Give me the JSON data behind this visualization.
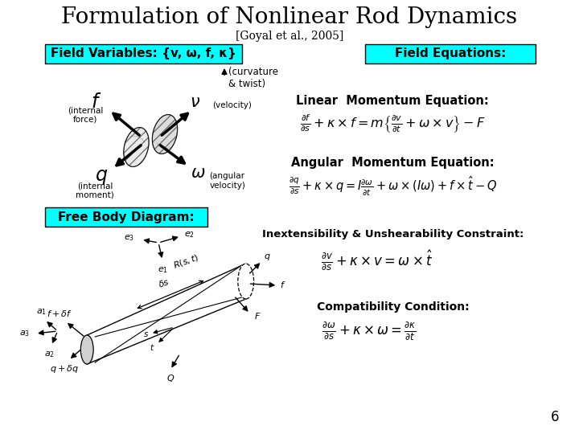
{
  "title": "Formulation of Nonlinear Rod Dynamics",
  "subtitle": "[Goyal et al., 2005]",
  "bg_color": "#ffffff",
  "cyan_color": "#00ffff",
  "title_fontsize": 20,
  "subtitle_fontsize": 10,
  "page_number": "6",
  "field_vars_label": "Field Variables: {v, ω, f, κ}",
  "field_eq_label": "Field Equations:",
  "free_body_label": "Free Body Diagram:",
  "linear_mom_label": "Linear  Momentum Equation:",
  "angular_mom_label": "Angular  Momentum Equation:",
  "inext_label": "Inextensibility & Unshearability Constraint:",
  "compat_label": "Compatibility Condition:"
}
